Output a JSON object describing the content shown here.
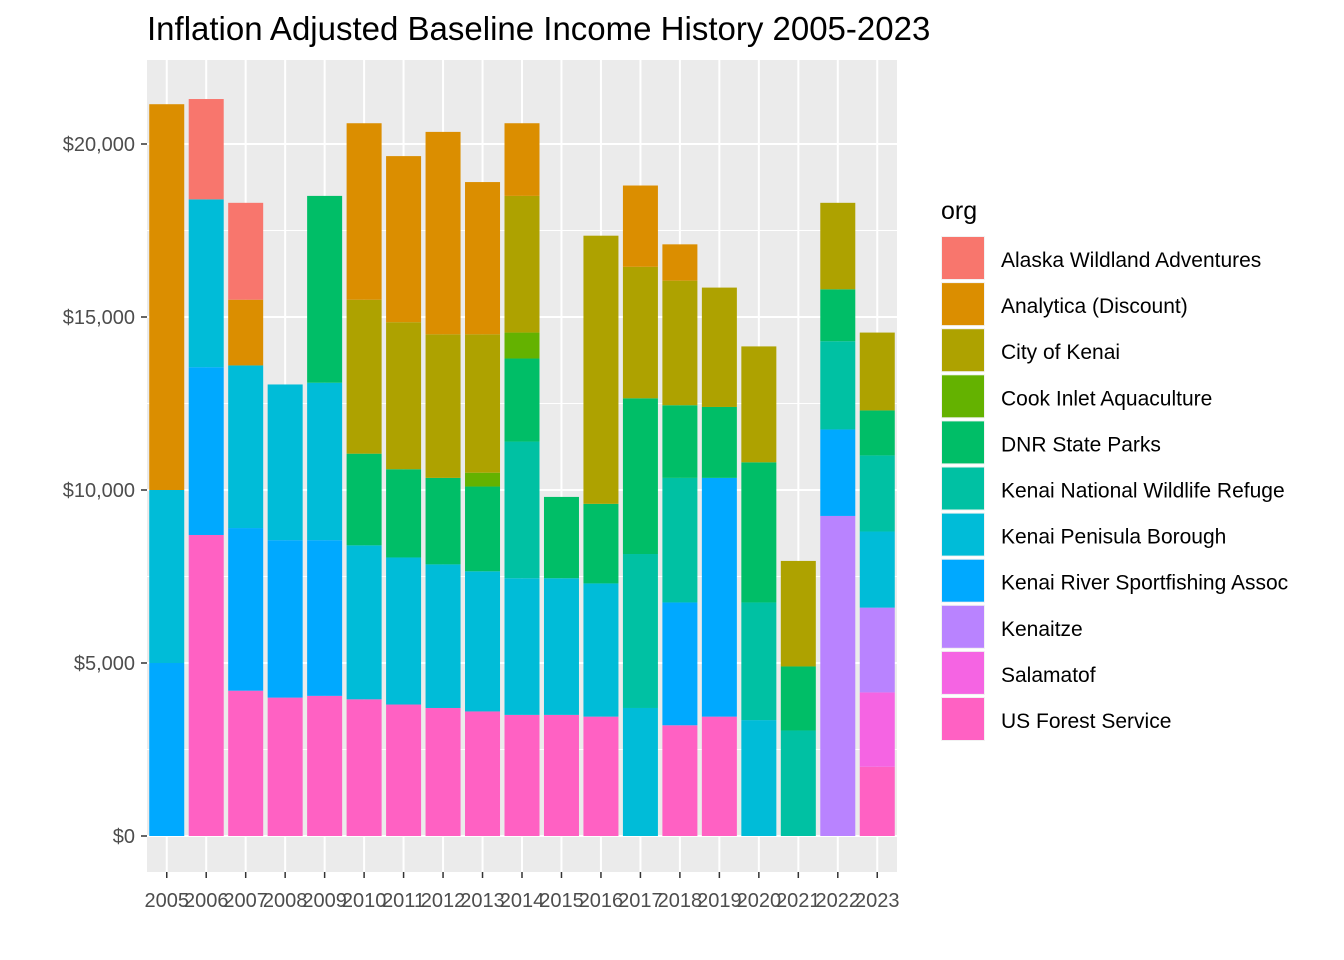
{
  "chart_data": {
    "type": "bar",
    "stacked": true,
    "title": "Inflation Adjusted Baseline Income History 2005-2023",
    "xlabel": "",
    "ylabel": "",
    "ylim": [
      -1100,
      22200
    ],
    "y_ticks": [
      0,
      5000,
      10000,
      15000,
      20000
    ],
    "y_tick_labels": [
      "$0",
      "$5,000",
      "$10,000",
      "$15,000",
      "$20,000"
    ],
    "categories": [
      "2005",
      "2006",
      "2007",
      "2008",
      "2009",
      "2010",
      "2011",
      "2012",
      "2013",
      "2014",
      "2015",
      "2016",
      "2017",
      "2018",
      "2019",
      "2020",
      "2021",
      "2022",
      "2023"
    ],
    "grid": true,
    "legend_position": "right",
    "legend_title": "org",
    "series": [
      {
        "name": "US Forest Service",
        "color": "#FF61C3",
        "values": [
          0,
          8700,
          4200,
          4000,
          4050,
          3950,
          3800,
          3700,
          3600,
          3500,
          3500,
          3450,
          0,
          3200,
          3450,
          0,
          0,
          0,
          2000
        ]
      },
      {
        "name": "Salamatof",
        "color": "#F564E3",
        "values": [
          0,
          0,
          0,
          0,
          0,
          0,
          0,
          0,
          0,
          0,
          0,
          0,
          0,
          0,
          0,
          0,
          0,
          0,
          2150
        ]
      },
      {
        "name": "Kenaitze",
        "color": "#B983FF",
        "values": [
          0,
          0,
          0,
          0,
          0,
          0,
          0,
          0,
          0,
          0,
          0,
          0,
          0,
          0,
          0,
          0,
          0,
          9250,
          2450
        ]
      },
      {
        "name": "Kenai River Sportfishing Assoc",
        "color": "#00A9FF",
        "values": [
          5000,
          4850,
          4700,
          4550,
          4500,
          0,
          0,
          0,
          0,
          0,
          0,
          0,
          0,
          3550,
          6900,
          0,
          0,
          2500,
          0
        ]
      },
      {
        "name": "Kenai Penisula Borough",
        "color": "#00BCD8",
        "values": [
          5000,
          4850,
          4700,
          4500,
          4550,
          4450,
          4250,
          4150,
          4050,
          3950,
          3950,
          3850,
          3700,
          0,
          0,
          3350,
          0,
          0,
          2200
        ]
      },
      {
        "name": "Kenai National Wildlife Refuge",
        "color": "#00C1A3",
        "values": [
          0,
          0,
          0,
          0,
          0,
          0,
          0,
          0,
          0,
          3950,
          0,
          0,
          4450,
          3600,
          0,
          3400,
          3050,
          2550,
          2200
        ]
      },
      {
        "name": "DNR State Parks",
        "color": "#00BE67",
        "values": [
          0,
          0,
          0,
          0,
          5400,
          2650,
          2550,
          2500,
          2450,
          2400,
          2350,
          2300,
          4500,
          2100,
          2050,
          4050,
          1850,
          1500,
          1300
        ]
      },
      {
        "name": "Cook Inlet Aquaculture",
        "color": "#64B200",
        "values": [
          0,
          0,
          0,
          0,
          0,
          0,
          0,
          0,
          400,
          750,
          0,
          0,
          0,
          0,
          0,
          0,
          0,
          0,
          0
        ]
      },
      {
        "name": "City of Kenai",
        "color": "#AEA200",
        "values": [
          0,
          0,
          0,
          0,
          0,
          4450,
          4250,
          4150,
          4000,
          3950,
          0,
          7750,
          3800,
          3600,
          3450,
          3350,
          3050,
          2500,
          2250
        ]
      },
      {
        "name": "Analytica (Discount)",
        "color": "#DB8E00",
        "values": [
          11150,
          0,
          1900,
          0,
          0,
          5100,
          4800,
          5850,
          4400,
          2100,
          0,
          0,
          2350,
          1050,
          0,
          0,
          0,
          0,
          0
        ]
      },
      {
        "name": "Alaska Wildland Adventures",
        "color": "#F8766D",
        "values": [
          0,
          2900,
          2800,
          0,
          0,
          0,
          0,
          0,
          0,
          0,
          0,
          0,
          0,
          0,
          0,
          0,
          0,
          0,
          0
        ]
      }
    ],
    "legend_order": [
      "Alaska Wildland Adventures",
      "Analytica (Discount)",
      "City of Kenai",
      "Cook Inlet Aquaculture",
      "DNR State Parks",
      "Kenai National Wildlife Refuge",
      "Kenai Penisula Borough",
      "Kenai River Sportfishing Assoc",
      "Kenaitze",
      "Salamatof",
      "US Forest Service"
    ]
  },
  "colors": {
    "panel_background": "#EBEBEB",
    "grid_major": "#FFFFFF",
    "tick_text": "#4D4D4D"
  }
}
